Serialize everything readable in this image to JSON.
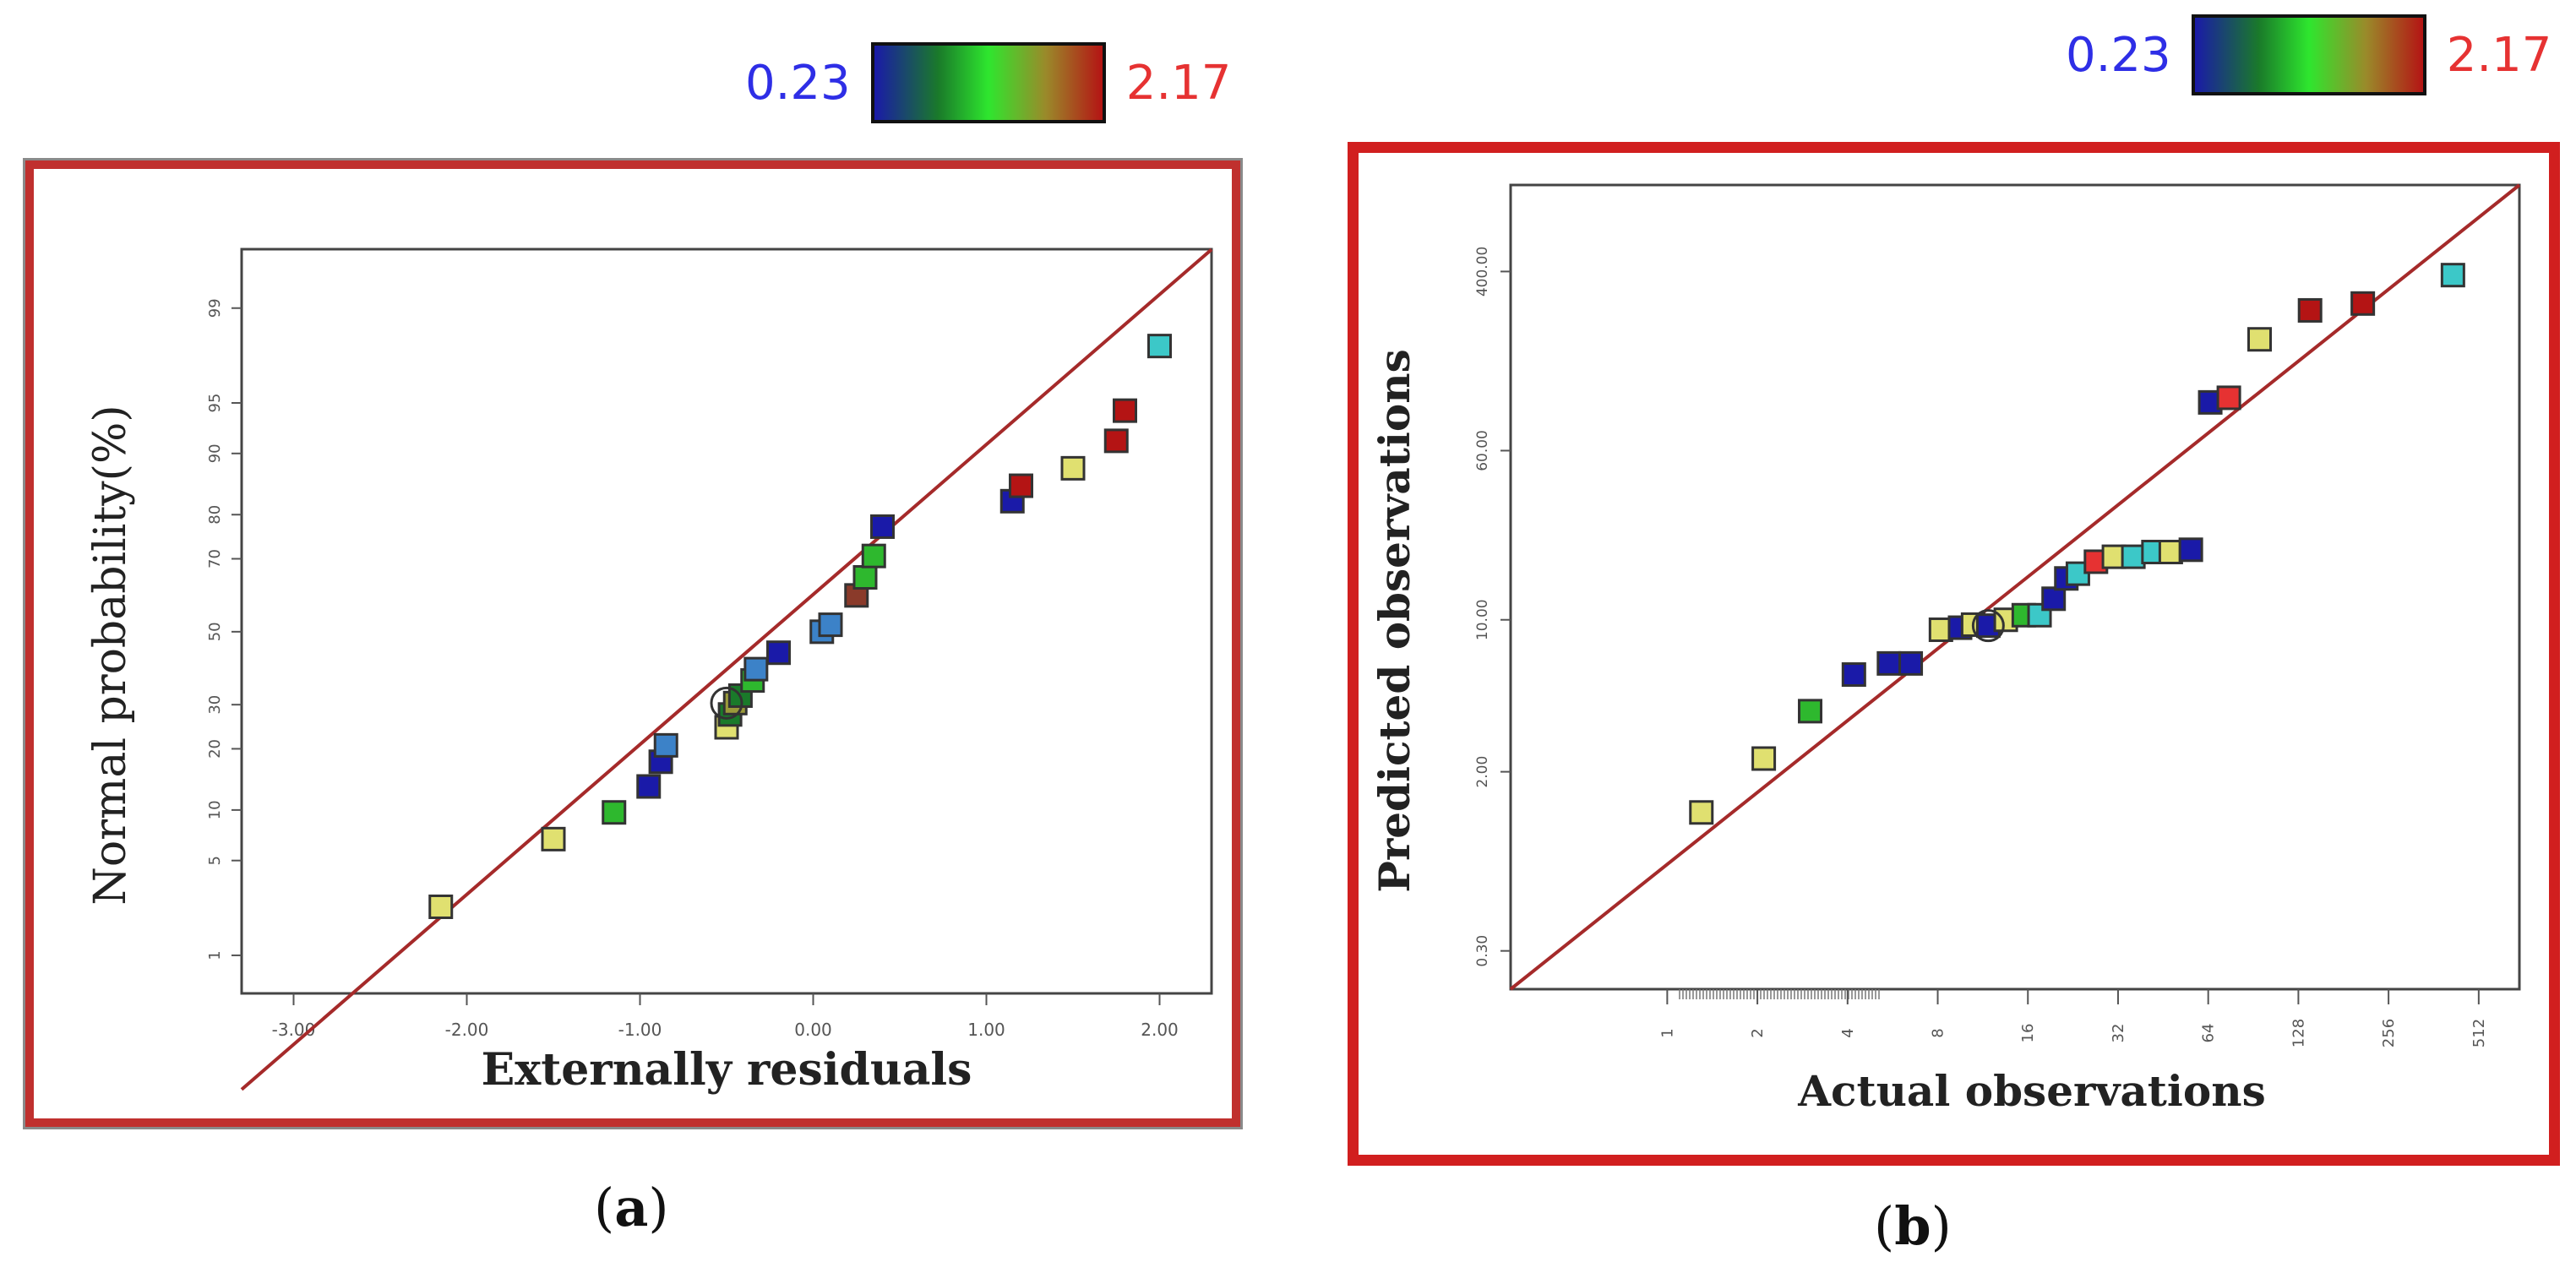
{
  "colors": {
    "low": "#2e2ee6",
    "high": "#e63232",
    "line": "#a52a2a",
    "frame": "#d11f1f"
  },
  "colorbar_a": {
    "min_label": "0.23",
    "max_label": "2.17"
  },
  "colorbar_b": {
    "min_label": "0.23",
    "max_label": "2.17"
  },
  "caption_a": {
    "open": "(",
    "letter": "a",
    "close": ")"
  },
  "caption_b": {
    "open": "(",
    "letter": "b",
    "close": ")"
  },
  "chart_data": [
    {
      "type": "scatter",
      "title": "",
      "xlabel": "Externally residuals",
      "ylabel": "Normal probability(%)",
      "xlim": [
        -3.3,
        2.3
      ],
      "xticks": [
        -3,
        -2,
        -1,
        0,
        1,
        2
      ],
      "xtick_labels": [
        "-3.00",
        "-2.00",
        "-1.00",
        "0.00",
        "1.00",
        "2.00"
      ],
      "yscale": "normal-probability",
      "yticks": [
        1,
        5,
        10,
        20,
        30,
        50,
        70,
        80,
        90,
        95,
        99
      ],
      "ytick_labels": [
        "1",
        "5",
        "10",
        "20",
        "30",
        "50",
        "70",
        "80",
        "90",
        "95",
        "99"
      ],
      "reference_line": [
        [
          -3.3,
          0.05
        ],
        [
          2.3,
          99.7
        ]
      ],
      "points": [
        {
          "x": -2.15,
          "y": 2.4,
          "color": "#e0e070"
        },
        {
          "x": -1.5,
          "y": 6.8,
          "color": "#e0e070"
        },
        {
          "x": -1.15,
          "y": 9.7,
          "color": "#2eb82e"
        },
        {
          "x": -0.95,
          "y": 13.3,
          "color": "#1a1aa8"
        },
        {
          "x": -0.88,
          "y": 17.5,
          "color": "#1a1aa8"
        },
        {
          "x": -0.85,
          "y": 20.7,
          "color": "#3c82c8"
        },
        {
          "x": -0.5,
          "y": 24.6,
          "color": "#e0e070"
        },
        {
          "x": -0.48,
          "y": 27.6,
          "color": "#1a7a2a"
        },
        {
          "x": -0.45,
          "y": 30.4,
          "color": "#9a9a3a"
        },
        {
          "x": -0.42,
          "y": 32.3,
          "color": "#1a7a2a"
        },
        {
          "x": -0.35,
          "y": 36.3,
          "color": "#2eb82e"
        },
        {
          "x": -0.33,
          "y": 39.4,
          "color": "#3c82c8"
        },
        {
          "x": -0.2,
          "y": 44.0,
          "color": "#1a1aa8"
        },
        {
          "x": 0.05,
          "y": 50.0,
          "color": "#3c82c8"
        },
        {
          "x": 0.1,
          "y": 52.0,
          "color": "#3c82c8"
        },
        {
          "x": 0.25,
          "y": 60.3,
          "color": "#8a3a2a"
        },
        {
          "x": 0.3,
          "y": 65.2,
          "color": "#2eb82e"
        },
        {
          "x": 0.35,
          "y": 70.7,
          "color": "#2eb82e"
        },
        {
          "x": 0.4,
          "y": 77.5,
          "color": "#1a1aa8"
        },
        {
          "x": 1.15,
          "y": 82.6,
          "color": "#1a1aa8"
        },
        {
          "x": 1.2,
          "y": 85.3,
          "color": "#b41414"
        },
        {
          "x": 1.5,
          "y": 88.0,
          "color": "#e0e070"
        },
        {
          "x": 1.75,
          "y": 91.5,
          "color": "#b41414"
        },
        {
          "x": 1.8,
          "y": 94.4,
          "color": "#b41414"
        },
        {
          "x": 2.0,
          "y": 98.0,
          "color": "#3cc8c8"
        }
      ]
    },
    {
      "type": "scatter",
      "title": "",
      "xlabel": "Actual   observations",
      "ylabel": "Predicted observations",
      "xscale": "log",
      "xlim": [
        0.3,
        700
      ],
      "xticks": [
        1,
        2,
        4,
        8,
        16,
        32,
        64,
        128,
        256,
        512
      ],
      "xtick_labels": [
        "1",
        "2",
        "4",
        "8",
        "16",
        "32",
        "64",
        "128",
        "256",
        "512"
      ],
      "yscale": "log",
      "ylim": [
        0.2,
        1000
      ],
      "yticks": [
        0.3,
        2,
        10,
        60,
        400
      ],
      "ytick_labels": [
        "0.30",
        "2.00",
        "10.00",
        "60.00",
        "400.00"
      ],
      "reference_line": [
        [
          0.3,
          0.2
        ],
        [
          700,
          1000
        ]
      ],
      "points": [
        {
          "x": 1.3,
          "y": 1.3,
          "color": "#e0e070"
        },
        {
          "x": 2.1,
          "y": 2.3,
          "color": "#e0e070"
        },
        {
          "x": 3.0,
          "y": 3.8,
          "color": "#2eb82e"
        },
        {
          "x": 4.2,
          "y": 5.6,
          "color": "#1a1aa8"
        },
        {
          "x": 5.5,
          "y": 6.3,
          "color": "#1a1aa8"
        },
        {
          "x": 6.5,
          "y": 6.3,
          "color": "#1a1aa8"
        },
        {
          "x": 8.2,
          "y": 9.0,
          "color": "#e0e070"
        },
        {
          "x": 9.5,
          "y": 9.2,
          "color": "#1a1aa8"
        },
        {
          "x": 10.5,
          "y": 9.5,
          "color": "#e0e070"
        },
        {
          "x": 11.8,
          "y": 9.4,
          "color": "#1a1aa8"
        },
        {
          "x": 13.5,
          "y": 10.0,
          "color": "#e0e070"
        },
        {
          "x": 15.5,
          "y": 10.5,
          "color": "#2eb82e"
        },
        {
          "x": 17.5,
          "y": 10.5,
          "color": "#3cc8c8"
        },
        {
          "x": 19.5,
          "y": 12.5,
          "color": "#1a1aa8"
        },
        {
          "x": 21.5,
          "y": 15.5,
          "color": "#1a1aa8"
        },
        {
          "x": 23.5,
          "y": 16.3,
          "color": "#3cc8c8"
        },
        {
          "x": 27,
          "y": 18.5,
          "color": "#e63232"
        },
        {
          "x": 31,
          "y": 19.5,
          "color": "#e0e070"
        },
        {
          "x": 36,
          "y": 19.5,
          "color": "#3cc8c8"
        },
        {
          "x": 42,
          "y": 20.5,
          "color": "#3cc8c8"
        },
        {
          "x": 48,
          "y": 20.5,
          "color": "#e0e070"
        },
        {
          "x": 56,
          "y": 21.0,
          "color": "#1a1aa8"
        },
        {
          "x": 65,
          "y": 100,
          "color": "#1a1aa8"
        },
        {
          "x": 75,
          "y": 105,
          "color": "#e63232"
        },
        {
          "x": 95,
          "y": 195,
          "color": "#e0e070"
        },
        {
          "x": 140,
          "y": 265,
          "color": "#b41414"
        },
        {
          "x": 210,
          "y": 285,
          "color": "#b41414"
        },
        {
          "x": 420,
          "y": 385,
          "color": "#3cc8c8"
        }
      ]
    }
  ]
}
